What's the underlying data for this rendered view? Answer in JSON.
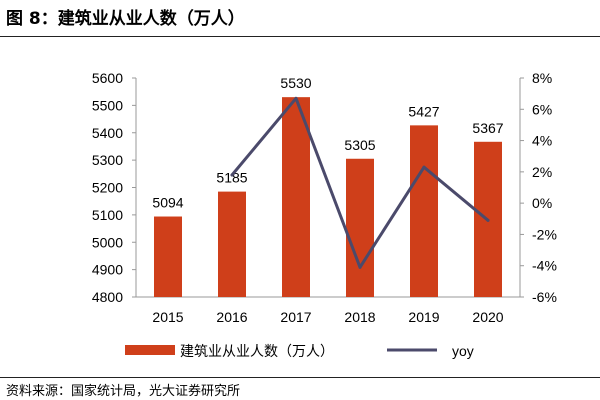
{
  "figure": {
    "title": "图 8：建筑业从业人数（万人）",
    "source": "资料来源：国家统计局，光大证券研究所"
  },
  "colors": {
    "bar": "#CF3F1A",
    "line": "#4B4A6B",
    "axis": "#999999",
    "text": "#000000"
  },
  "chart_data": {
    "type": "bar",
    "title": "",
    "categories": [
      "2015",
      "2016",
      "2017",
      "2018",
      "2019",
      "2020"
    ],
    "series": [
      {
        "name": "建筑业从业人数（万人）",
        "type": "bar",
        "axis": "left",
        "values": [
          5094,
          5185,
          5530,
          5305,
          5427,
          5367
        ],
        "labels": [
          "5094",
          "5185",
          "5530",
          "5305",
          "5427",
          "5367"
        ]
      },
      {
        "name": "yoy",
        "type": "line",
        "axis": "right",
        "values": [
          null,
          1.8,
          6.7,
          -4.1,
          2.3,
          -1.1
        ]
      }
    ],
    "y_left": {
      "min": 4800,
      "max": 5600,
      "step": 100,
      "ticks": [
        "4800",
        "4900",
        "5000",
        "5100",
        "5200",
        "5300",
        "5400",
        "5500",
        "5600"
      ]
    },
    "y_right": {
      "min": -6,
      "max": 8,
      "step": 2,
      "ticks": [
        "-6%",
        "-4%",
        "-2%",
        "0%",
        "2%",
        "4%",
        "6%",
        "8%"
      ]
    },
    "grid": false,
    "legend_position": "bottom"
  }
}
